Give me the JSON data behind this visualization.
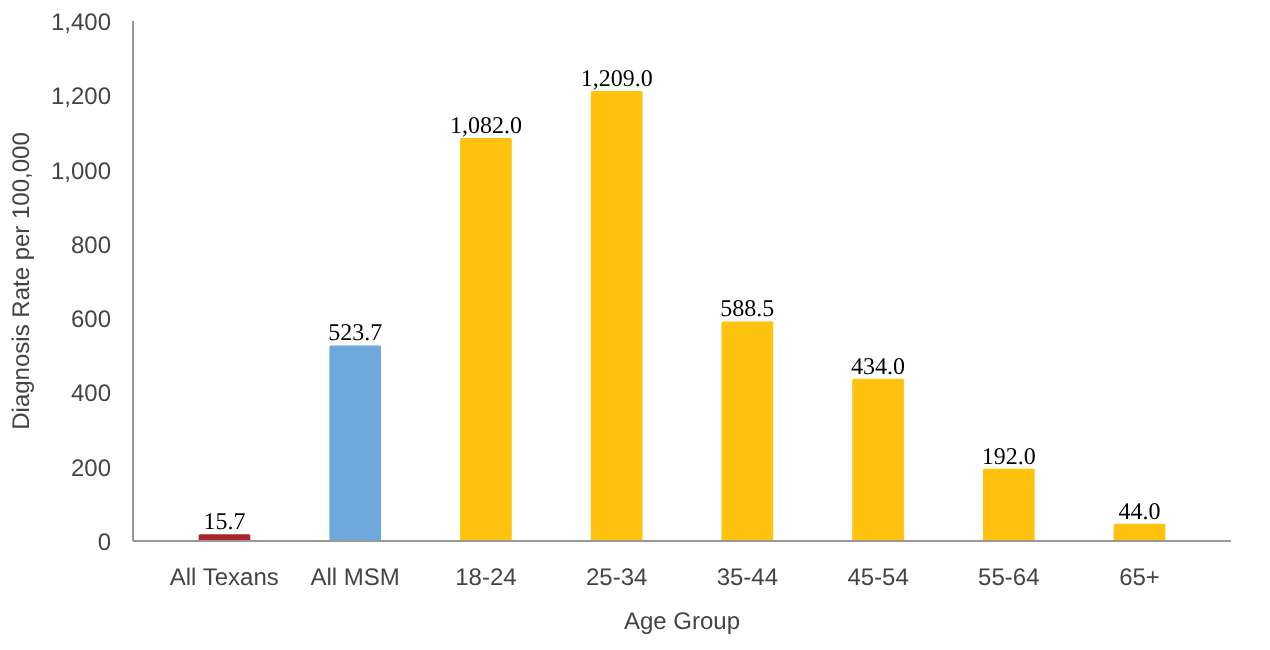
{
  "chart_data": {
    "type": "bar",
    "xlabel": "Age Group",
    "ylabel": "Diagnosis Rate per 100,000",
    "categories": [
      "All Texans",
      "All MSM",
      "18-24",
      "25-34",
      "35-44",
      "45-54",
      "55-64",
      "65+"
    ],
    "values": [
      15.7,
      523.7,
      1082.0,
      1209.0,
      588.5,
      434.0,
      192.0,
      44.0
    ],
    "colors": [
      "#a8262c",
      "#6fa8dc",
      "#ffc20e",
      "#ffc20e",
      "#ffc20e",
      "#ffc20e",
      "#ffc20e",
      "#ffc20e"
    ],
    "value_labels": [
      "15.7",
      "523.7",
      "1,082.0",
      "1,209.0",
      "588.5",
      "434.0",
      "192.0",
      "44.0"
    ],
    "ylim": [
      0,
      1400
    ],
    "yticks": [
      0,
      200,
      400,
      600,
      800,
      {
        "value": 1000,
        "label": "1,000"
      },
      {
        "value": 1200,
        "label": "1,200"
      },
      {
        "value": 1400,
        "label": "1,400"
      }
    ],
    "grid": false
  }
}
